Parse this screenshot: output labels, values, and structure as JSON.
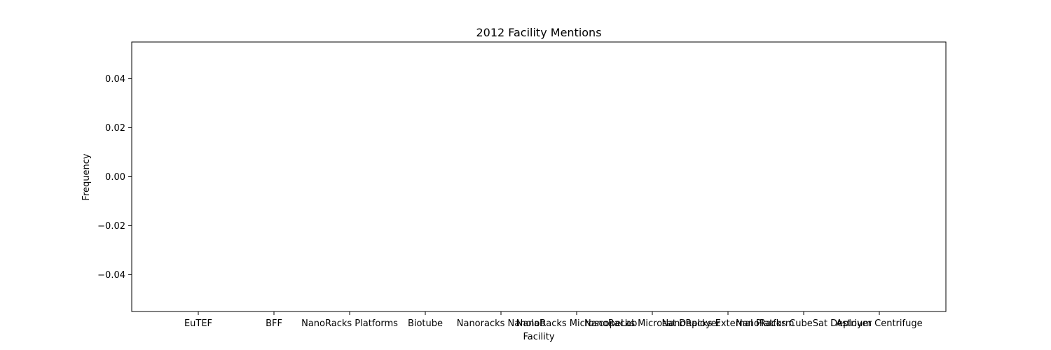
{
  "chart_data": {
    "type": "bar",
    "title": "2012 Facility Mentions",
    "xlabel": "Facility",
    "ylabel": "Frequency",
    "categories": [
      "EuTEF",
      "BFF",
      "NanoRacks Platforms",
      "Biotube",
      "Nanoracks Nanolab",
      "NanoRacks MicroscopeLab",
      "NanoRacks Microsat Deployer",
      "NanoRacks External Platform",
      "NanoRacks CubeSat Deployer",
      "Astrium Centrifuge"
    ],
    "values": [
      0,
      0,
      0,
      0,
      0,
      0,
      0,
      0,
      0,
      0
    ],
    "ylim": [
      -0.055,
      0.055
    ],
    "yticks": [
      0.04,
      0.02,
      0.0,
      -0.02,
      -0.04
    ],
    "ytick_labels": [
      "0.04",
      "0.02",
      "0.00",
      "−0.02",
      "−0.04"
    ],
    "grid": false,
    "legend": "none",
    "colors": {
      "bar": "#1f77b4",
      "axis": "#000000",
      "background": "#ffffff"
    }
  }
}
